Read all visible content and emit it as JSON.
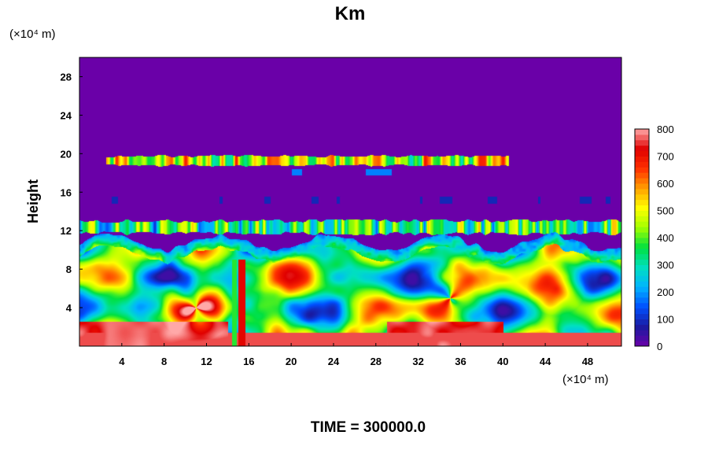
{
  "chart_data": {
    "type": "heatmap",
    "title": "Km",
    "xlabel": "",
    "ylabel": "Height",
    "x_unit": "(×10⁴ m)",
    "y_unit": "(×10⁴ m)",
    "footer": "TIME = 300000.0",
    "xlim": [
      0,
      51.2
    ],
    "ylim": [
      0,
      30
    ],
    "xticks": [
      4,
      8,
      12,
      16,
      20,
      24,
      28,
      32,
      36,
      40,
      44,
      48
    ],
    "yticks": [
      4,
      8,
      12,
      16,
      20,
      24,
      28
    ],
    "colorbar": {
      "ticks": [
        0,
        100,
        200,
        300,
        400,
        500,
        600,
        700,
        800
      ],
      "range": [
        0,
        800
      ],
      "colors": [
        "#6a00a8",
        "#1a1aa0",
        "#0050ff",
        "#00b4ff",
        "#00e0c0",
        "#00e040",
        "#a0ff00",
        "#ffff00",
        "#ffa000",
        "#ff3000",
        "#e00000",
        "#ffa8a8"
      ]
    },
    "field_description_levels": {
      "background": 0,
      "low_layer_mean": 550,
      "surface_max": 800,
      "band_upper_height": 19.3,
      "band_mid_height": 12.4,
      "boundary_layer_top": 10.5
    }
  }
}
